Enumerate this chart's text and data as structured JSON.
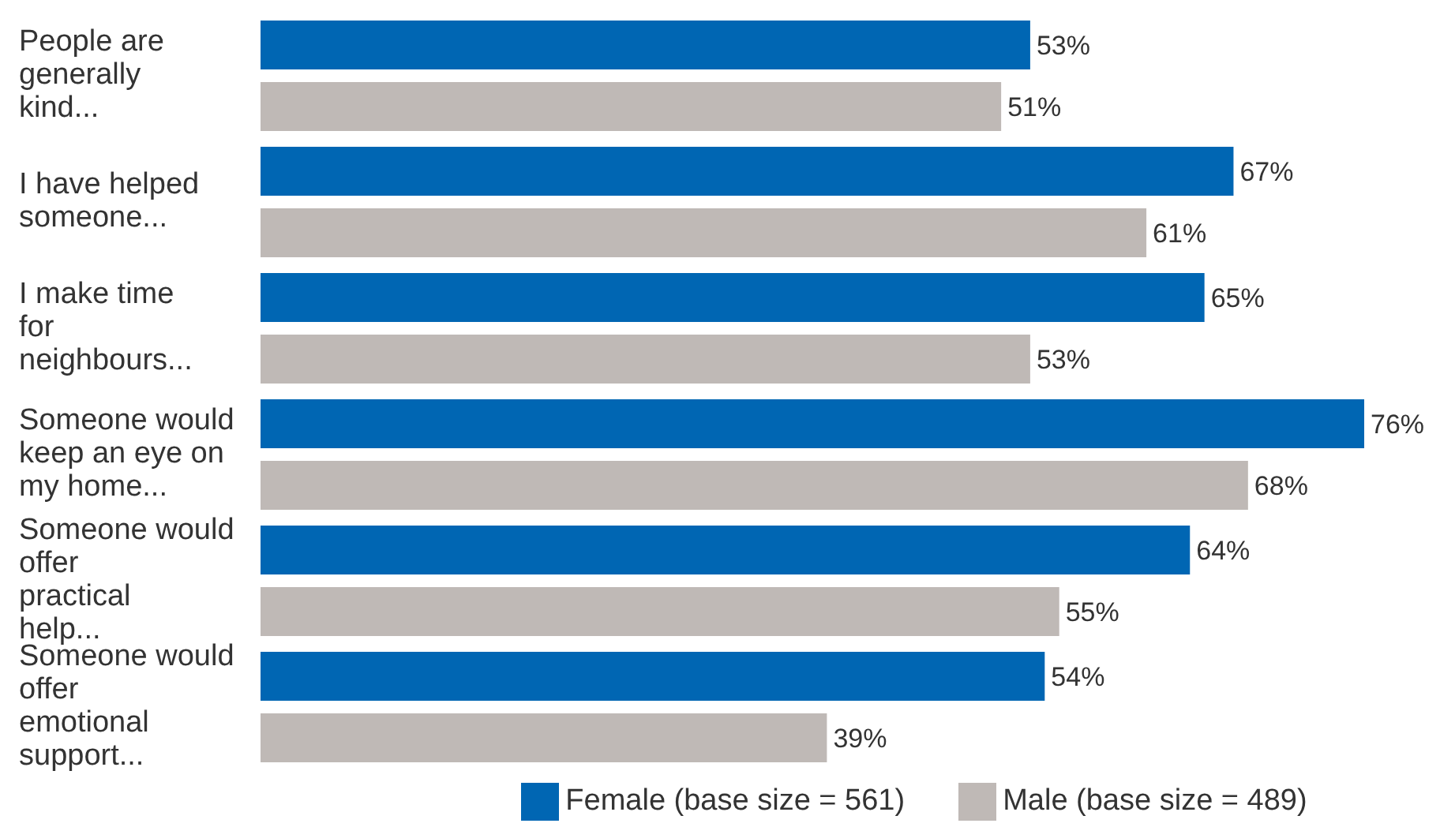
{
  "chart_data": {
    "type": "bar",
    "orientation": "horizontal",
    "categories": [
      "People are generally kind...",
      "I have helped someone...",
      "I make time for neighbours...",
      "Someone would keep an eye on my home...",
      "Someone would offer practical help...",
      "Someone would offer emotional support..."
    ],
    "series": [
      {
        "name": "Female (base size = 561)",
        "color": "#0066b3",
        "values": [
          53,
          67,
          65,
          76,
          64,
          54
        ],
        "value_labels": [
          "53%",
          "67%",
          "65%",
          "76%",
          "64%",
          "54%"
        ]
      },
      {
        "name": "Male (base size = 489)",
        "color": "#bfb9b6",
        "values": [
          51,
          61,
          53,
          68,
          55,
          39
        ],
        "value_labels": [
          "51%",
          "61%",
          "53%",
          "68%",
          "55%",
          "39%"
        ]
      }
    ],
    "xlim": [
      0,
      76
    ],
    "grid": false,
    "legend": "bottom"
  }
}
